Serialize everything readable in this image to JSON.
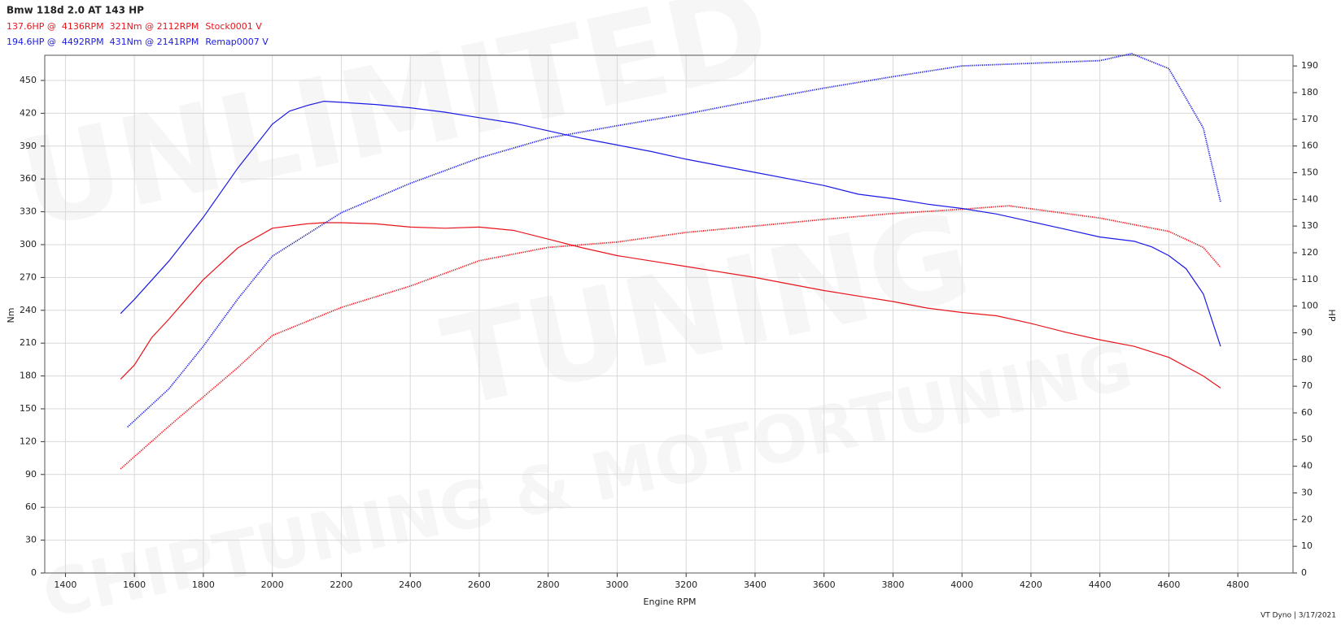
{
  "chart_data": {
    "type": "line",
    "title": "Bmw 118d 2.0 AT 143 HP",
    "x_label": "Engine RPM",
    "y_label": "Nm",
    "y2_label": "HP",
    "footer": "VT Dyno | 3/17/2021",
    "watermark": [
      "UNLIMITED",
      "TUNING",
      "CHIPTUNING & MOTORTUNING"
    ],
    "xlim": [
      1340,
      4960
    ],
    "xticks": [
      1400,
      1600,
      1800,
      2000,
      2200,
      2400,
      2600,
      2800,
      3000,
      3200,
      3400,
      3600,
      3800,
      4000,
      4200,
      4400,
      4600,
      4800
    ],
    "ylim": [
      0,
      473
    ],
    "yticks": [
      0,
      30,
      60,
      90,
      120,
      150,
      180,
      210,
      240,
      270,
      300,
      330,
      360,
      390,
      420,
      450
    ],
    "y2lim": [
      0,
      194
    ],
    "y2ticks": [
      0,
      10,
      20,
      30,
      40,
      50,
      60,
      70,
      80,
      90,
      100,
      110,
      120,
      130,
      140,
      150,
      160,
      170,
      180,
      190
    ],
    "grid": true,
    "series": [
      {
        "name": "Stock0001 V",
        "summary": "137.6HP @  4136RPM  321Nm @ 2112RPM",
        "color": "#e8141b",
        "x": [
          1560,
          1600,
          1650,
          1700,
          1750,
          1800,
          1900,
          2000,
          2100,
          2150,
          2200,
          2300,
          2400,
          2500,
          2600,
          2700,
          2800,
          2900,
          3000,
          3100,
          3200,
          3300,
          3400,
          3500,
          3600,
          3700,
          3800,
          3900,
          4000,
          4100,
          4200,
          4300,
          4400,
          4500,
          4600,
          4700,
          4750
        ],
        "values": [
          177,
          190,
          215,
          232,
          250,
          268,
          297,
          315,
          319,
          320,
          320,
          319,
          316,
          315,
          316,
          313,
          305,
          297,
          290,
          285,
          280,
          275,
          270,
          264,
          258,
          253,
          248,
          242,
          238,
          235,
          228,
          220,
          213,
          207,
          197,
          180,
          169
        ],
        "power_x": [
          1560,
          1700,
          1800,
          1900,
          2000,
          2200,
          2400,
          2600,
          2800,
          3000,
          3200,
          3400,
          3600,
          3800,
          4000,
          4136,
          4400,
          4600,
          4700,
          4750
        ],
        "power_values": [
          39,
          55,
          66,
          77,
          89,
          99.5,
          107.5,
          117,
          122,
          124,
          127.6,
          130,
          132.5,
          134.7,
          136.3,
          137.6,
          133,
          128,
          122,
          114.5
        ]
      },
      {
        "name": "Remap0007 V",
        "summary": "194.6HP @  4492RPM  431Nm @ 2141RPM",
        "color": "#1a1ae6",
        "x": [
          1560,
          1600,
          1700,
          1800,
          1900,
          2000,
          2050,
          2100,
          2150,
          2200,
          2300,
          2400,
          2500,
          2600,
          2700,
          2800,
          2900,
          3000,
          3100,
          3200,
          3300,
          3400,
          3500,
          3600,
          3700,
          3800,
          3900,
          4000,
          4100,
          4200,
          4300,
          4400,
          4500,
          4550,
          4600,
          4650,
          4700,
          4750
        ],
        "values": [
          237,
          250,
          285,
          325,
          370,
          410,
          422,
          427,
          431,
          430,
          428,
          425,
          421,
          416,
          411,
          404,
          397,
          391,
          385,
          378,
          372,
          366,
          360,
          354,
          346,
          342,
          337,
          333,
          328,
          321,
          314,
          307,
          303,
          298,
          290,
          278,
          255,
          207
        ],
        "power_x": [
          1580,
          1700,
          1800,
          1900,
          2000,
          2200,
          2400,
          2600,
          2800,
          3000,
          3200,
          3400,
          3600,
          3800,
          4000,
          4200,
          4400,
          4492,
          4600,
          4700,
          4750
        ],
        "power_values": [
          54.7,
          69,
          85,
          102.7,
          118.7,
          135,
          146,
          155.5,
          163,
          167.6,
          172,
          177,
          181.7,
          186,
          190,
          191,
          192,
          194.6,
          189,
          166.7,
          139
        ]
      }
    ]
  }
}
